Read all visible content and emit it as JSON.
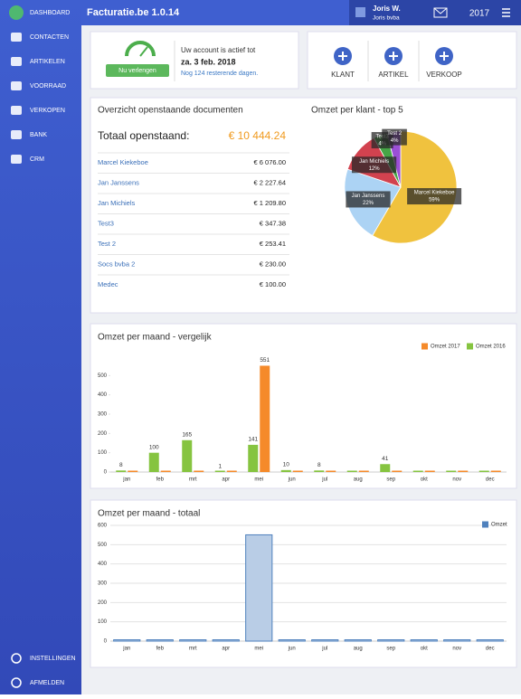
{
  "sidebar": {
    "items": [
      "DASHBOARD",
      "CONTACTEN",
      "ARTIKELEN",
      "VOORRAAD",
      "VERKOPEN",
      "BANK",
      "CRM"
    ],
    "bottom": [
      "INSTELLINGEN",
      "AFMELDEN"
    ]
  },
  "header": {
    "title": "Facturatie.be 1.0.14",
    "user": "Joris W.",
    "company": "Joris bvba",
    "year": "2017"
  },
  "account": {
    "button": "Nu verlengen",
    "text": "Uw account is actief tot",
    "date": "za. 3 feb. 2018",
    "remaining": "Nog 124 resterende dagen."
  },
  "actions": [
    "KLANT",
    "ARTIKEL",
    "VERKOOP"
  ],
  "documents": {
    "title": "Overzicht openstaande documenten",
    "total_label": "Totaal openstaand:",
    "total": "€ 10 444.24",
    "rows": [
      [
        "Marcel Kiekeboe",
        "€ 6 076.00"
      ],
      [
        "Jan Janssens",
        "€ 2 227.64"
      ],
      [
        "Jan Michiels",
        "€ 1 209.80"
      ],
      [
        "Test3",
        "€ 347.38"
      ],
      [
        "Test 2",
        "€ 253.41"
      ],
      [
        "Socs bvba 2",
        "€ 230.00"
      ],
      [
        "Medec",
        "€ 100.00"
      ]
    ]
  },
  "chart_data": [
    {
      "type": "pie",
      "title": "Omzet per klant - top 5",
      "categories": [
        "Marcel Kiekeboe",
        "Jan Janssens",
        "Jan Michiels",
        "Test3",
        "Test 2"
      ],
      "values": [
        59,
        22,
        12,
        4,
        4
      ],
      "value_labels": [
        "59%",
        "22%",
        "12%",
        "4%",
        "4%"
      ],
      "colors": [
        "#f0c23e",
        "#acd3f4",
        "#d2424f",
        "#46a546",
        "#9b4fd6"
      ]
    },
    {
      "type": "bar",
      "title": "Omzet per maand - vergelijk",
      "categories": [
        "jan",
        "feb",
        "mrt",
        "apr",
        "mei",
        "jun",
        "jul",
        "aug",
        "sep",
        "okt",
        "nov",
        "dec"
      ],
      "series": [
        {
          "name": "Omzet 2017",
          "color": "#f58a2a",
          "values": [
            0,
            0,
            0,
            0,
            551,
            0,
            0,
            0,
            0,
            0,
            0,
            0
          ]
        },
        {
          "name": "Omzet 2016",
          "color": "#86c440",
          "values": [
            8,
            100,
            165,
            1,
            141,
            10,
            8,
            0,
            41,
            0,
            0,
            0
          ]
        }
      ],
      "ylim": [
        0,
        600
      ],
      "yticks": [
        0,
        100,
        200,
        300,
        400,
        500
      ],
      "grid": false,
      "legend": "top-right"
    },
    {
      "type": "bar",
      "title": "Omzet per maand - totaal",
      "categories": [
        "jan",
        "feb",
        "mrt",
        "apr",
        "mei",
        "jun",
        "jul",
        "aug",
        "sep",
        "okt",
        "nov",
        "dec"
      ],
      "series": [
        {
          "name": "Omzet",
          "color": "#4f81bd",
          "values": [
            0,
            0,
            0,
            0,
            551,
            0,
            0,
            0,
            0,
            0,
            0,
            0
          ]
        }
      ],
      "ylim": [
        0,
        600
      ],
      "yticks": [
        0,
        100,
        200,
        300,
        400,
        500,
        600
      ],
      "grid": true,
      "legend": "top-right"
    }
  ]
}
